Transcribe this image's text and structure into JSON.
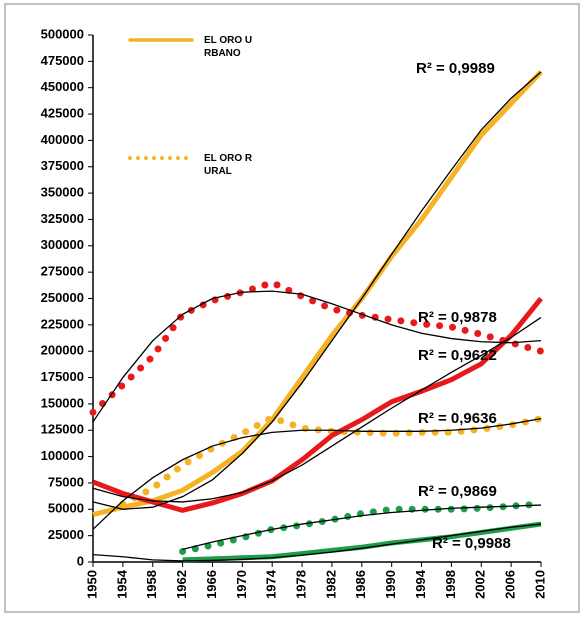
{
  "chart_data": {
    "type": "line",
    "x": [
      1950,
      1954,
      1958,
      1962,
      1966,
      1970,
      1974,
      1978,
      1982,
      1986,
      1990,
      1994,
      1998,
      2002,
      2006,
      2010
    ],
    "xlim": [
      1950,
      2010
    ],
    "xticks": [
      1950,
      1954,
      1958,
      1962,
      1966,
      1970,
      1974,
      1978,
      1982,
      1986,
      1990,
      1994,
      1998,
      2002,
      2006,
      2010
    ],
    "ylim": [
      0,
      500000
    ],
    "yticks": [
      0,
      25000,
      50000,
      75000,
      100000,
      125000,
      150000,
      175000,
      200000,
      225000,
      250000,
      275000,
      300000,
      325000,
      350000,
      375000,
      400000,
      425000,
      450000,
      475000,
      500000
    ],
    "grid": false,
    "trend_color": "#000000",
    "series": [
      {
        "name": "EL ORO URBANO",
        "color": "#f5b323",
        "style": "solid",
        "values": [
          45000,
          52000,
          58000,
          68000,
          85000,
          105000,
          135000,
          175000,
          215000,
          250000,
          290000,
          325000,
          365000,
          405000,
          435000,
          465000
        ],
        "trend": [
          57000,
          50000,
          52000,
          62000,
          78000,
          103000,
          133000,
          170000,
          210000,
          250000,
          292000,
          333000,
          372000,
          410000,
          440000,
          465000
        ]
      },
      {
        "name": "EL ORO RURAL",
        "color": "#f5b323",
        "style": "dotted",
        "values": [
          null,
          55000,
          70000,
          92000,
          108000,
          122000,
          137000,
          127000,
          124000,
          123000,
          122000,
          123000,
          123000,
          126000,
          130000,
          136000
        ],
        "trend": [
          31000,
          58000,
          80000,
          97000,
          110000,
          118000,
          123000,
          125000,
          125000,
          124000,
          124000,
          124000,
          125000,
          127000,
          131000,
          136000
        ]
      },
      {
        "color": "#e8191a",
        "style": "dotted",
        "values": [
          142000,
          168000,
          195000,
          235000,
          248000,
          256000,
          265000,
          252000,
          240000,
          234000,
          230000,
          226000,
          223000,
          216000,
          208000,
          200000
        ],
        "trend": [
          133000,
          175000,
          210000,
          235000,
          250000,
          256000,
          257000,
          254000,
          245000,
          235000,
          225000,
          217000,
          212000,
          209000,
          208000,
          210000
        ]
      },
      {
        "color": "#e8191a",
        "style": "solid",
        "values": [
          76000,
          65000,
          57000,
          49000,
          56000,
          65000,
          77000,
          97000,
          120000,
          135000,
          152000,
          162000,
          173000,
          188000,
          215000,
          250000
        ],
        "trend": [
          70000,
          62000,
          58000,
          57000,
          60000,
          66000,
          77000,
          92000,
          110000,
          128000,
          146000,
          163000,
          180000,
          196000,
          213000,
          232000
        ]
      },
      {
        "color": "#1e9b4b",
        "style": "dotted",
        "values": [
          null,
          null,
          null,
          10000,
          16000,
          23000,
          31000,
          35000,
          40000,
          46000,
          50000,
          50000,
          50000,
          51000,
          53000,
          55000
        ],
        "trend": [
          null,
          null,
          null,
          12000,
          19000,
          25000,
          31000,
          36000,
          40000,
          44000,
          47000,
          49000,
          51000,
          52000,
          53000,
          54000
        ]
      },
      {
        "color": "#1e9b4b",
        "style": "solid",
        "values": [
          null,
          null,
          null,
          2000,
          3000,
          4000,
          5000,
          8000,
          11000,
          14000,
          18000,
          21000,
          24000,
          28000,
          32000,
          36000
        ],
        "trend": [
          7000,
          5000,
          2000,
          1000,
          1500,
          2500,
          4000,
          6500,
          9500,
          13000,
          17000,
          21000,
          25000,
          29000,
          33000,
          36000
        ]
      }
    ],
    "annotations": [
      "R² = 0,9989",
      "R² = 0,9878",
      "R² = 0,9622",
      "R² = 0,9636",
      "R² = 0,9869",
      "R² = 0,9988"
    ]
  }
}
